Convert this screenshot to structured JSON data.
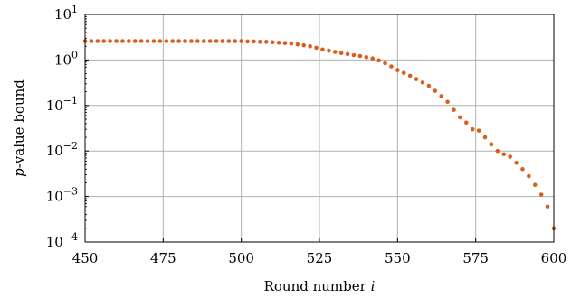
{
  "chart_data": {
    "type": "scatter",
    "xlabel": "Round number",
    "xlabel_var": "i",
    "ylabel_var": "p",
    "ylabel": "-value bound",
    "xlim": [
      450,
      600
    ],
    "ylim": [
      0.0001,
      10
    ],
    "yscale": "log",
    "grid": true,
    "marker_color": "#d95f1e",
    "x_ticks": [
      {
        "value": 450,
        "label": "450"
      },
      {
        "value": 475,
        "label": "475"
      },
      {
        "value": 500,
        "label": "500"
      },
      {
        "value": 525,
        "label": "525"
      },
      {
        "value": 550,
        "label": "550"
      },
      {
        "value": 575,
        "label": "575"
      },
      {
        "value": 600,
        "label": "600"
      }
    ],
    "y_ticks": [
      {
        "value": 10,
        "base": "10",
        "exp": "1"
      },
      {
        "value": 1,
        "base": "10",
        "exp": "0"
      },
      {
        "value": 0.1,
        "base": "10",
        "exp": "−1"
      },
      {
        "value": 0.01,
        "base": "10",
        "exp": "−2"
      },
      {
        "value": 0.001,
        "base": "10",
        "exp": "−3"
      },
      {
        "value": 0.0001,
        "base": "10",
        "exp": "−4"
      }
    ],
    "series": [
      {
        "x": [
          450,
          452,
          454,
          456,
          458,
          460,
          462,
          464,
          466,
          468,
          470,
          472,
          474,
          476,
          478,
          480,
          482,
          484,
          486,
          488,
          490,
          492,
          494,
          496,
          498,
          500,
          502,
          504,
          506,
          508,
          510,
          512,
          514,
          516,
          518,
          520,
          522,
          524,
          526,
          528,
          530,
          532,
          534,
          536,
          538,
          540,
          542,
          544,
          546,
          548,
          550,
          552,
          554,
          556,
          558,
          560,
          562,
          564,
          566,
          568,
          570,
          572,
          574,
          576,
          578,
          580,
          582,
          584,
          586,
          588,
          590,
          592,
          594,
          596,
          598,
          600
        ],
        "y": [
          2.6,
          2.6,
          2.6,
          2.6,
          2.6,
          2.6,
          2.6,
          2.6,
          2.6,
          2.6,
          2.6,
          2.6,
          2.6,
          2.6,
          2.6,
          2.6,
          2.6,
          2.6,
          2.6,
          2.6,
          2.6,
          2.6,
          2.6,
          2.6,
          2.6,
          2.6,
          2.55,
          2.55,
          2.5,
          2.5,
          2.45,
          2.4,
          2.35,
          2.3,
          2.2,
          2.1,
          2.0,
          1.85,
          1.7,
          1.6,
          1.5,
          1.42,
          1.35,
          1.28,
          1.22,
          1.15,
          1.08,
          0.98,
          0.85,
          0.72,
          0.6,
          0.52,
          0.45,
          0.38,
          0.32,
          0.27,
          0.21,
          0.16,
          0.12,
          0.08,
          0.055,
          0.042,
          0.03,
          0.028,
          0.02,
          0.014,
          0.01,
          0.0085,
          0.0075,
          0.0055,
          0.004,
          0.0028,
          0.0018,
          0.0011,
          0.0006,
          0.0002
        ]
      }
    ]
  }
}
